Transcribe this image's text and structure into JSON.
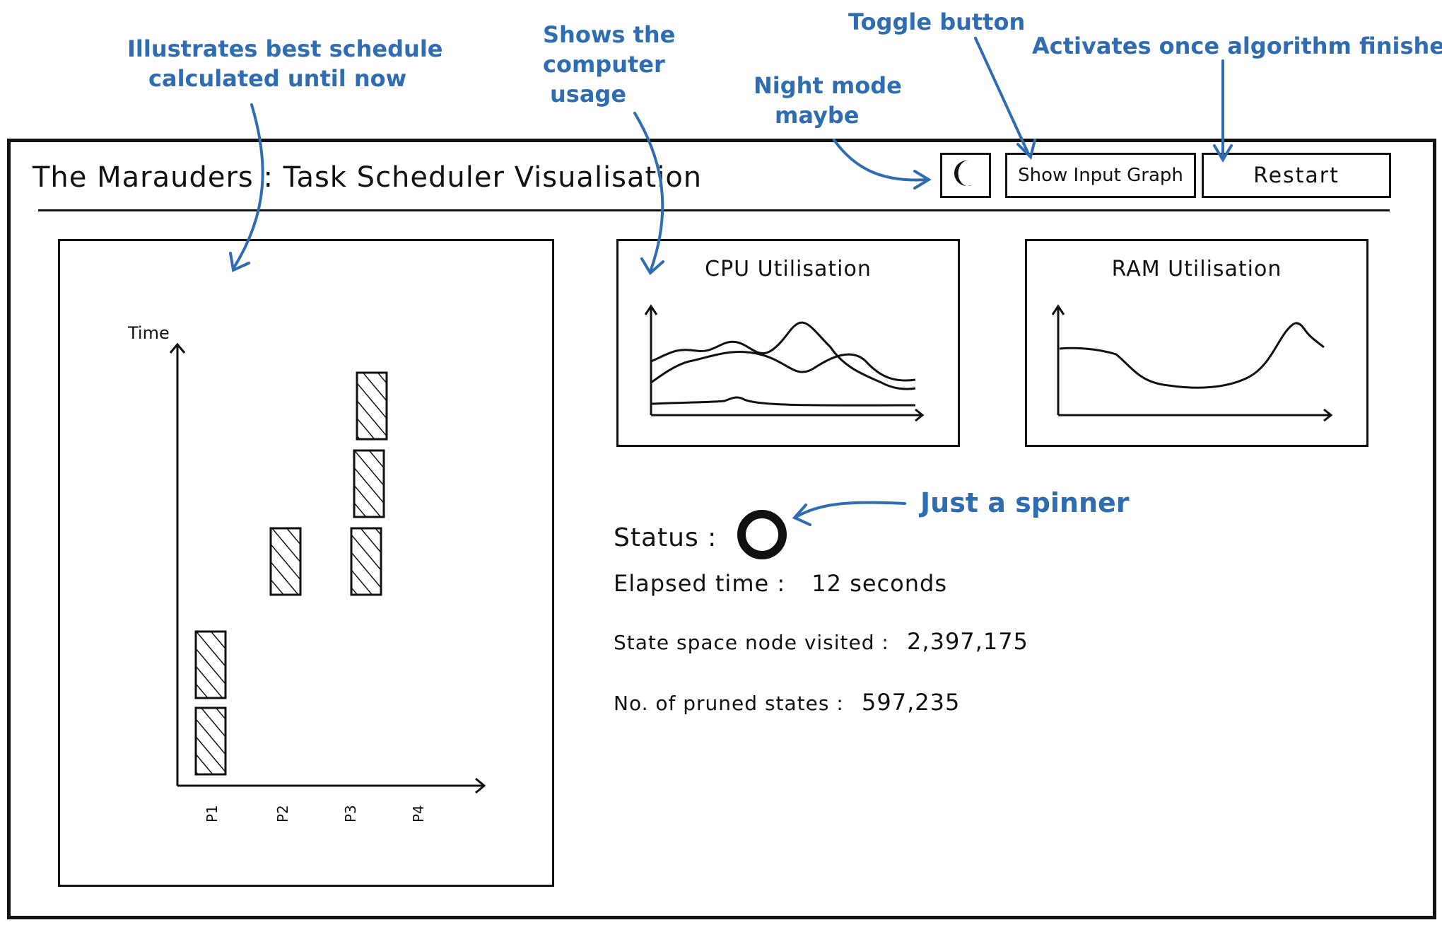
{
  "window": {
    "title": "The Marauders : Task Scheduler Visualisation"
  },
  "toolbar": {
    "night_mode_icon": "moon-icon",
    "show_input_graph_label": "Show Input Graph",
    "restart_label": "Restart"
  },
  "schedule_panel": {
    "y_axis_label": "Time",
    "processors": [
      "P1",
      "P2",
      "P3",
      "P4"
    ]
  },
  "cpu_panel": {
    "title": "CPU Utilisation"
  },
  "ram_panel": {
    "title": "RAM Utilisation"
  },
  "stats": {
    "status_label": "Status :",
    "elapsed_label": "Elapsed time :",
    "elapsed_value": "12 seconds",
    "visited_label": "State space node visited :",
    "visited_value": "2,397,175",
    "pruned_label": "No. of pruned states :",
    "pruned_value": "597,235"
  },
  "annotations": {
    "best_schedule": [
      "Illustrates best schedule",
      "calculated until now"
    ],
    "computer_usage": [
      "Shows the",
      "computer",
      "usage"
    ],
    "night_mode": [
      "Night mode",
      "maybe"
    ],
    "toggle": "Toggle button",
    "activates": "Activates once algorithm finishes",
    "spinner": "Just a spinner"
  },
  "colors": {
    "annotation": "#2f6db3",
    "ink": "#111111"
  }
}
